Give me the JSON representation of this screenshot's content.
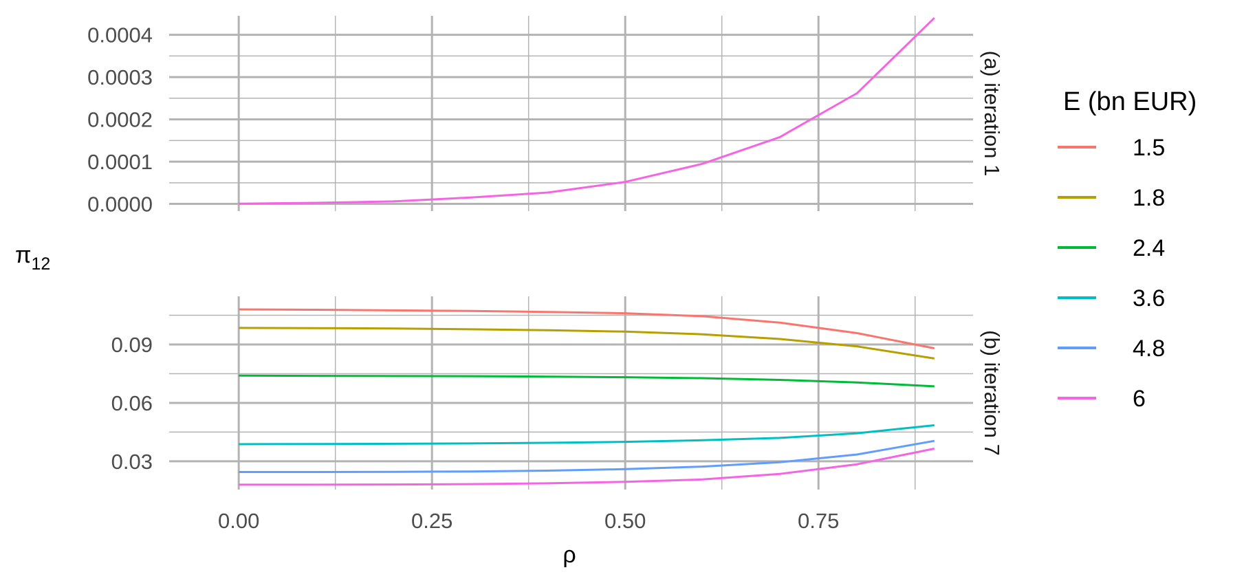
{
  "chart_data": {
    "type": "line",
    "xlabel": "ρ",
    "ylabel": "π",
    "ylabel_sub": "12",
    "xlim": [
      -0.09,
      0.95
    ],
    "x_ticks": [
      0.0,
      0.25,
      0.5,
      0.75
    ],
    "x_tick_labels": [
      "0.00",
      "0.25",
      "0.50",
      "0.75"
    ],
    "legend": {
      "title": "E (bn EUR)",
      "placement": "right",
      "entries": [
        {
          "label": "1.5",
          "color": "#F8766D"
        },
        {
          "label": "1.8",
          "color": "#B79F00"
        },
        {
          "label": "2.4",
          "color": "#00BA38"
        },
        {
          "label": "3.6",
          "color": "#00BFC4"
        },
        {
          "label": "4.8",
          "color": "#619CFF"
        },
        {
          "label": "6",
          "color": "#F564E3"
        }
      ]
    },
    "panels": [
      {
        "strip": "(a)  iteration 1",
        "ylim": [
          -1.7e-05,
          0.000445
        ],
        "y_ticks": [
          0,
          0.0001,
          0.0002,
          0.0003,
          0.0004
        ],
        "y_tick_labels": [
          "0.0000",
          "0.0001",
          "0.0002",
          "0.0003",
          "0.0004"
        ],
        "series": [
          {
            "name": "6",
            "color": "#F564E3",
            "x": [
              0.0,
              0.1,
              0.2,
              0.3,
              0.4,
              0.5,
              0.6,
              0.7,
              0.8,
              0.9
            ],
            "y": [
              5e-07,
              2.5e-06,
              6e-06,
              1.5e-05,
              2.7e-05,
              5.2e-05,
              9.5e-05,
              0.000158,
              0.000262,
              0.00044
            ]
          }
        ]
      },
      {
        "strip": "(b)  iteration 7",
        "ylim": [
          0.0155,
          0.1147
        ],
        "y_ticks": [
          0.03,
          0.06,
          0.09
        ],
        "y_tick_labels": [
          "0.03",
          "0.06",
          "0.09"
        ],
        "series": [
          {
            "name": "1.5",
            "color": "#F8766D",
            "x": [
              0.0,
              0.1,
              0.2,
              0.3,
              0.4,
              0.5,
              0.6,
              0.7,
              0.8,
              0.9
            ],
            "y": [
              0.108,
              0.1078,
              0.1075,
              0.1072,
              0.1067,
              0.106,
              0.1045,
              0.1012,
              0.0958,
              0.088
            ]
          },
          {
            "name": "1.8",
            "color": "#B79F00",
            "x": [
              0.0,
              0.1,
              0.2,
              0.3,
              0.4,
              0.5,
              0.6,
              0.7,
              0.8,
              0.9
            ],
            "y": [
              0.0985,
              0.0984,
              0.0982,
              0.0978,
              0.0973,
              0.0966,
              0.0952,
              0.0928,
              0.089,
              0.0828
            ]
          },
          {
            "name": "2.4",
            "color": "#00BA38",
            "x": [
              0.0,
              0.1,
              0.2,
              0.3,
              0.4,
              0.5,
              0.6,
              0.7,
              0.8,
              0.9
            ],
            "y": [
              0.074,
              0.0739,
              0.0738,
              0.0737,
              0.0735,
              0.0732,
              0.0727,
              0.0718,
              0.0705,
              0.0685
            ]
          },
          {
            "name": "3.6",
            "color": "#00BFC4",
            "x": [
              0.0,
              0.1,
              0.2,
              0.3,
              0.4,
              0.5,
              0.6,
              0.7,
              0.8,
              0.9
            ],
            "y": [
              0.0388,
              0.0389,
              0.039,
              0.0392,
              0.0395,
              0.04,
              0.0408,
              0.042,
              0.0444,
              0.0485
            ]
          },
          {
            "name": "4.8",
            "color": "#619CFF",
            "x": [
              0.0,
              0.1,
              0.2,
              0.3,
              0.4,
              0.5,
              0.6,
              0.7,
              0.8,
              0.9
            ],
            "y": [
              0.0245,
              0.0245,
              0.0246,
              0.0248,
              0.0252,
              0.026,
              0.0273,
              0.0295,
              0.0335,
              0.0405
            ]
          },
          {
            "name": "6",
            "color": "#F564E3",
            "x": [
              0.0,
              0.1,
              0.2,
              0.3,
              0.4,
              0.5,
              0.6,
              0.7,
              0.8,
              0.9
            ],
            "y": [
              0.018,
              0.018,
              0.0181,
              0.0183,
              0.0187,
              0.0195,
              0.0207,
              0.0235,
              0.0285,
              0.0365
            ]
          }
        ]
      }
    ]
  }
}
